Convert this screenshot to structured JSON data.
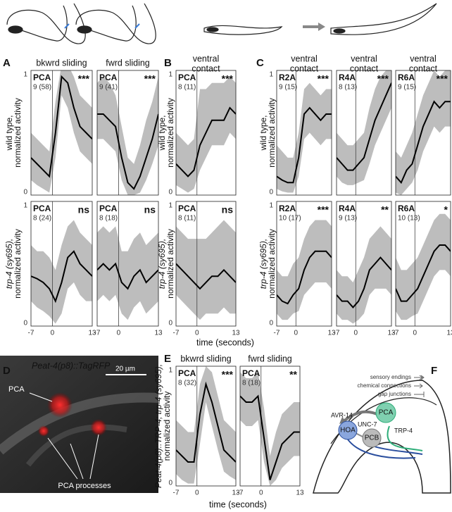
{
  "time_axis": {
    "label": "time (seconds)",
    "xlim": [
      -7,
      13
    ],
    "xticks": [
      -7,
      0,
      13
    ],
    "x": [
      -7,
      -5,
      -3,
      -1,
      1,
      3,
      5,
      7,
      9,
      11,
      13
    ]
  },
  "activity_axis": {
    "ylim": [
      0,
      1
    ],
    "yticks": [
      0,
      1
    ]
  },
  "panels": {
    "a": {
      "letter": "A",
      "columns": [
        [
          "bkwrd sliding"
        ],
        [
          "fwrd sliding"
        ]
      ],
      "rows": [
        {
          "ylabel": [
            "wild type,",
            "normalized activity"
          ],
          "plots": [
            {
              "neuron": "PCA",
              "n": "9 (58)",
              "sig": "***",
              "mean": [
                0.3,
                0.25,
                0.2,
                0.15,
                0.5,
                0.95,
                0.9,
                0.7,
                0.55,
                0.5,
                0.45
              ],
              "lo": [
                0.12,
                0.08,
                0.05,
                0.02,
                0.3,
                0.8,
                0.7,
                0.5,
                0.35,
                0.3,
                0.25
              ],
              "hi": [
                0.5,
                0.45,
                0.4,
                0.35,
                0.75,
                1.05,
                1.05,
                0.95,
                0.8,
                0.75,
                0.7
              ]
            },
            {
              "neuron": "PCA",
              "n": "9 (41)",
              "sig": "***",
              "mean": [
                0.65,
                0.65,
                0.6,
                0.55,
                0.3,
                0.1,
                0.05,
                0.15,
                0.3,
                0.45,
                0.65
              ],
              "lo": [
                0.45,
                0.45,
                0.4,
                0.35,
                0.12,
                0.0,
                0.0,
                0.02,
                0.12,
                0.25,
                0.4
              ],
              "hi": [
                0.9,
                0.95,
                0.9,
                0.8,
                0.55,
                0.3,
                0.25,
                0.4,
                0.6,
                0.75,
                0.95
              ]
            }
          ]
        },
        {
          "ylabel": [
            "trp-4 (sy695),",
            "normalized activity"
          ],
          "plots": [
            {
              "neuron": "PCA",
              "n": "8 (24)",
              "sig": "ns",
              "mean": [
                0.4,
                0.38,
                0.35,
                0.3,
                0.2,
                0.35,
                0.55,
                0.6,
                0.5,
                0.45,
                0.4
              ],
              "lo": [
                0.2,
                0.15,
                0.12,
                0.08,
                0.02,
                0.1,
                0.3,
                0.35,
                0.25,
                0.2,
                0.2
              ],
              "hi": [
                0.65,
                0.6,
                0.6,
                0.55,
                0.45,
                0.65,
                0.8,
                0.85,
                0.75,
                0.7,
                0.65
              ]
            },
            {
              "neuron": "PCA",
              "n": "8 (18)",
              "sig": "ns",
              "mean": [
                0.45,
                0.5,
                0.45,
                0.5,
                0.35,
                0.3,
                0.4,
                0.45,
                0.35,
                0.4,
                0.45
              ],
              "lo": [
                0.2,
                0.25,
                0.2,
                0.25,
                0.1,
                0.05,
                0.15,
                0.2,
                0.1,
                0.15,
                0.2
              ],
              "hi": [
                0.75,
                0.8,
                0.75,
                0.8,
                0.6,
                0.6,
                0.7,
                0.75,
                0.65,
                0.7,
                0.75
              ]
            }
          ]
        }
      ]
    },
    "b": {
      "letter": "B",
      "columns": [
        [
          "ventral",
          "contact"
        ]
      ],
      "rows": [
        {
          "ylabel": [
            "wild type,",
            "normalized activity"
          ],
          "plots": [
            {
              "neuron": "PCA",
              "n": "8 (11)",
              "sig": "***",
              "mean": [
                0.25,
                0.2,
                0.15,
                0.2,
                0.4,
                0.5,
                0.6,
                0.6,
                0.6,
                0.7,
                0.65
              ],
              "lo": [
                0.08,
                0.05,
                0.02,
                0.05,
                0.2,
                0.3,
                0.4,
                0.4,
                0.4,
                0.5,
                0.45
              ],
              "hi": [
                0.5,
                0.45,
                0.4,
                0.45,
                0.85,
                0.85,
                0.9,
                0.9,
                0.9,
                0.95,
                0.9
              ]
            }
          ]
        },
        {
          "ylabel": [
            "trp-4 (sy695),",
            "normalized activity"
          ],
          "plots": [
            {
              "neuron": "PCA",
              "n": "8 (11)",
              "sig": "ns",
              "mean": [
                0.5,
                0.45,
                0.4,
                0.35,
                0.3,
                0.35,
                0.4,
                0.4,
                0.45,
                0.4,
                0.35
              ],
              "lo": [
                0.25,
                0.2,
                0.15,
                0.1,
                0.05,
                0.1,
                0.1,
                0.1,
                0.15,
                0.1,
                0.1
              ],
              "hi": [
                0.8,
                0.75,
                0.7,
                0.7,
                0.7,
                0.7,
                0.75,
                0.8,
                0.85,
                0.8,
                0.75
              ]
            }
          ]
        }
      ]
    },
    "c": {
      "letter": "C",
      "columns": [
        [
          "ventral",
          "contact"
        ],
        [
          "ventral",
          "contact"
        ],
        [
          "ventral",
          "contact"
        ]
      ],
      "rows": [
        {
          "ylabel": [
            "wild type,",
            "normalized activity"
          ],
          "plots": [
            {
              "neuron": "R2A",
              "n": "9 (15)",
              "sig": "***",
              "mean": [
                0.15,
                0.12,
                0.1,
                0.1,
                0.3,
                0.65,
                0.7,
                0.65,
                0.6,
                0.65,
                0.65
              ],
              "lo": [
                0.05,
                0.03,
                0.02,
                0.02,
                0.15,
                0.45,
                0.5,
                0.45,
                0.4,
                0.45,
                0.45
              ],
              "hi": [
                0.4,
                0.35,
                0.3,
                0.3,
                0.5,
                0.85,
                0.9,
                0.85,
                0.8,
                0.85,
                0.85
              ]
            },
            {
              "neuron": "R4A",
              "n": "8 (13)",
              "sig": "***",
              "mean": [
                0.3,
                0.25,
                0.2,
                0.2,
                0.25,
                0.3,
                0.45,
                0.6,
                0.7,
                0.8,
                0.9
              ],
              "lo": [
                0.15,
                0.1,
                0.08,
                0.08,
                0.1,
                0.12,
                0.25,
                0.4,
                0.5,
                0.6,
                0.7
              ],
              "hi": [
                0.5,
                0.45,
                0.4,
                0.4,
                0.45,
                0.5,
                0.7,
                0.85,
                0.95,
                1.0,
                1.0
              ]
            },
            {
              "neuron": "R6A",
              "n": "9 (15)",
              "sig": "***",
              "mean": [
                0.15,
                0.1,
                0.2,
                0.25,
                0.4,
                0.55,
                0.65,
                0.75,
                0.7,
                0.75,
                0.75
              ],
              "lo": [
                0.02,
                0.0,
                0.05,
                0.1,
                0.2,
                0.35,
                0.45,
                0.55,
                0.5,
                0.55,
                0.55
              ],
              "hi": [
                0.35,
                0.3,
                0.4,
                0.5,
                0.65,
                0.8,
                0.9,
                1.0,
                0.95,
                1.0,
                1.0
              ]
            }
          ]
        },
        {
          "ylabel": [
            "trp-4 (sy695),",
            "normalized activity"
          ],
          "plots": [
            {
              "neuron": "R2A",
              "n": "10 (17)",
              "sig": "***",
              "mean": [
                0.25,
                0.2,
                0.18,
                0.25,
                0.3,
                0.45,
                0.55,
                0.6,
                0.6,
                0.6,
                0.55
              ],
              "lo": [
                0.1,
                0.05,
                0.05,
                0.1,
                0.12,
                0.25,
                0.3,
                0.35,
                0.35,
                0.35,
                0.3
              ],
              "hi": [
                0.45,
                0.4,
                0.4,
                0.5,
                0.55,
                0.7,
                0.8,
                0.85,
                0.85,
                0.85,
                0.8
              ]
            },
            {
              "neuron": "R4A",
              "n": "9 (13)",
              "sig": "**",
              "mean": [
                0.25,
                0.2,
                0.2,
                0.15,
                0.2,
                0.3,
                0.45,
                0.5,
                0.55,
                0.5,
                0.45
              ],
              "lo": [
                0.1,
                0.05,
                0.05,
                0.02,
                0.05,
                0.1,
                0.25,
                0.3,
                0.3,
                0.3,
                0.25
              ],
              "hi": [
                0.45,
                0.4,
                0.4,
                0.35,
                0.45,
                0.55,
                0.7,
                0.75,
                0.8,
                0.75,
                0.7
              ]
            },
            {
              "neuron": "R6A",
              "n": "10 (13)",
              "sig": "*",
              "mean": [
                0.3,
                0.2,
                0.2,
                0.25,
                0.3,
                0.4,
                0.5,
                0.6,
                0.65,
                0.65,
                0.6
              ],
              "lo": [
                0.12,
                0.05,
                0.05,
                0.08,
                0.1,
                0.2,
                0.3,
                0.4,
                0.45,
                0.45,
                0.4
              ],
              "hi": [
                0.55,
                0.45,
                0.45,
                0.5,
                0.55,
                0.65,
                0.75,
                0.85,
                0.9,
                0.9,
                0.85
              ]
            }
          ]
        }
      ]
    },
    "e": {
      "letter": "E",
      "columns": [
        [
          "bkwrd sliding"
        ],
        [
          "fwrd sliding"
        ]
      ],
      "rows": [
        {
          "ylabel": [
            "Peat-4(p8)::TRP-4; trp-4 (sy695),",
            "normalized activity"
          ],
          "plots": [
            {
              "neuron": "PCA",
              "n": "8 (32)",
              "sig": "***",
              "mean": [
                0.3,
                0.25,
                0.2,
                0.2,
                0.6,
                0.85,
                0.7,
                0.5,
                0.3,
                0.25,
                0.2
              ],
              "lo": [
                0.1,
                0.05,
                0.02,
                0.02,
                0.35,
                0.7,
                0.5,
                0.3,
                0.12,
                0.08,
                0.05
              ],
              "hi": [
                0.55,
                0.5,
                0.45,
                0.45,
                0.85,
                1.0,
                0.95,
                0.75,
                0.55,
                0.5,
                0.45
              ]
            },
            {
              "neuron": "PCA",
              "n": "8 (18)",
              "sig": "**",
              "mean": [
                0.75,
                0.7,
                0.7,
                0.75,
                0.4,
                0.05,
                0.2,
                0.35,
                0.4,
                0.45,
                0.45
              ],
              "lo": [
                0.55,
                0.5,
                0.5,
                0.55,
                0.2,
                0.0,
                0.05,
                0.15,
                0.2,
                0.25,
                0.25
              ],
              "hi": [
                0.95,
                0.9,
                0.9,
                0.95,
                0.65,
                0.25,
                0.45,
                0.6,
                0.65,
                0.7,
                0.7
              ]
            }
          ]
        }
      ]
    }
  },
  "panel_d": {
    "letter": "D",
    "title": "Peat-4(p8)::TagRFP",
    "scale": "20 µm",
    "labels": [
      "PCA",
      "PCA processes"
    ]
  },
  "panel_f": {
    "letter": "F",
    "legend": [
      "sensory endings",
      "chemical connections",
      "gap junctions"
    ],
    "nodes": [
      "PCA",
      "HOA",
      "PCB"
    ],
    "labels": [
      "AVR-14",
      "UNC-7",
      "TRP-4"
    ]
  }
}
